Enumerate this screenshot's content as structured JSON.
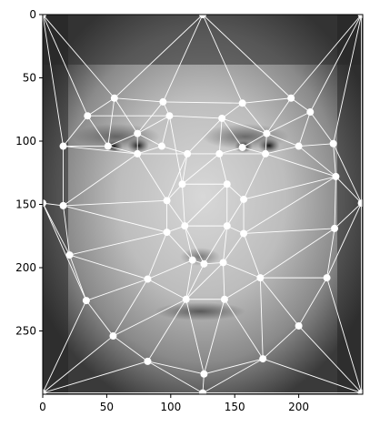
{
  "chart_data": {
    "type": "scatter",
    "title": "",
    "xlabel": "",
    "ylabel": "",
    "xlim": [
      0,
      250
    ],
    "ylim": [
      300,
      0
    ],
    "xticks": [
      0,
      50,
      100,
      150,
      200
    ],
    "yticks": [
      0,
      50,
      100,
      150,
      200,
      250
    ],
    "grid": false,
    "background_image": "grayscale-average-face",
    "colors": {
      "edges": "#ffffff",
      "points": "#ffffff",
      "frame": "#000000"
    },
    "points": [
      [
        0,
        0
      ],
      [
        125,
        0
      ],
      [
        249,
        0
      ],
      [
        0,
        149
      ],
      [
        249,
        149
      ],
      [
        0,
        299
      ],
      [
        125,
        299
      ],
      [
        249,
        299
      ],
      [
        56,
        66
      ],
      [
        94,
        69
      ],
      [
        35,
        80
      ],
      [
        99,
        80
      ],
      [
        74,
        94
      ],
      [
        51,
        104
      ],
      [
        93,
        104
      ],
      [
        16,
        104
      ],
      [
        74,
        110
      ],
      [
        113,
        110
      ],
      [
        156,
        70
      ],
      [
        194,
        66
      ],
      [
        209,
        77
      ],
      [
        140,
        82
      ],
      [
        175,
        94
      ],
      [
        156,
        105
      ],
      [
        138,
        110
      ],
      [
        174,
        110
      ],
      [
        200,
        104
      ],
      [
        227,
        102
      ],
      [
        109,
        134
      ],
      [
        144,
        134
      ],
      [
        97,
        147
      ],
      [
        157,
        146
      ],
      [
        16,
        151
      ],
      [
        229,
        128
      ],
      [
        97,
        172
      ],
      [
        111,
        167
      ],
      [
        144,
        167
      ],
      [
        157,
        173
      ],
      [
        228,
        169
      ],
      [
        21,
        190
      ],
      [
        117,
        194
      ],
      [
        126,
        197
      ],
      [
        141,
        196
      ],
      [
        82,
        209
      ],
      [
        170,
        208
      ],
      [
        222,
        208
      ],
      [
        34,
        226
      ],
      [
        112,
        225
      ],
      [
        142,
        225
      ],
      [
        200,
        246
      ],
      [
        55,
        254
      ],
      [
        82,
        274
      ],
      [
        126,
        284
      ],
      [
        172,
        272
      ]
    ],
    "edges": [
      [
        0,
        1
      ],
      [
        1,
        2
      ],
      [
        2,
        4
      ],
      [
        4,
        7
      ],
      [
        7,
        6
      ],
      [
        6,
        5
      ],
      [
        5,
        3
      ],
      [
        3,
        0
      ],
      [
        0,
        10
      ],
      [
        0,
        15
      ],
      [
        0,
        8
      ],
      [
        1,
        8
      ],
      [
        1,
        9
      ],
      [
        1,
        18
      ],
      [
        1,
        19
      ],
      [
        2,
        19
      ],
      [
        2,
        20
      ],
      [
        2,
        27
      ],
      [
        8,
        9
      ],
      [
        8,
        10
      ],
      [
        8,
        12
      ],
      [
        8,
        13
      ],
      [
        9,
        11
      ],
      [
        9,
        12
      ],
      [
        9,
        18
      ],
      [
        10,
        13
      ],
      [
        10,
        15
      ],
      [
        11,
        12
      ],
      [
        11,
        14
      ],
      [
        11,
        21
      ],
      [
        11,
        28
      ],
      [
        12,
        13
      ],
      [
        12,
        14
      ],
      [
        12,
        16
      ],
      [
        13,
        15
      ],
      [
        13,
        16
      ],
      [
        14,
        16
      ],
      [
        14,
        17
      ],
      [
        15,
        16
      ],
      [
        15,
        32
      ],
      [
        16,
        17
      ],
      [
        16,
        30
      ],
      [
        16,
        32
      ],
      [
        17,
        28
      ],
      [
        17,
        21
      ],
      [
        17,
        24
      ],
      [
        18,
        19
      ],
      [
        18,
        21
      ],
      [
        18,
        22
      ],
      [
        19,
        20
      ],
      [
        19,
        22
      ],
      [
        20,
        22
      ],
      [
        20,
        26
      ],
      [
        20,
        27
      ],
      [
        21,
        22
      ],
      [
        21,
        23
      ],
      [
        21,
        24
      ],
      [
        22,
        23
      ],
      [
        22,
        25
      ],
      [
        22,
        26
      ],
      [
        23,
        24
      ],
      [
        23,
        25
      ],
      [
        24,
        25
      ],
      [
        24,
        29
      ],
      [
        24,
        28
      ],
      [
        25,
        26
      ],
      [
        25,
        31
      ],
      [
        25,
        33
      ],
      [
        26,
        27
      ],
      [
        26,
        33
      ],
      [
        27,
        33
      ],
      [
        27,
        4
      ],
      [
        28,
        29
      ],
      [
        28,
        30
      ],
      [
        28,
        35
      ],
      [
        29,
        31
      ],
      [
        29,
        36
      ],
      [
        29,
        35
      ],
      [
        30,
        32
      ],
      [
        30,
        34
      ],
      [
        30,
        35
      ],
      [
        31,
        33
      ],
      [
        31,
        36
      ],
      [
        31,
        37
      ],
      [
        32,
        3
      ],
      [
        32,
        39
      ],
      [
        32,
        34
      ],
      [
        33,
        4
      ],
      [
        33,
        37
      ],
      [
        33,
        38
      ],
      [
        34,
        35
      ],
      [
        34,
        39
      ],
      [
        34,
        40
      ],
      [
        34,
        43
      ],
      [
        35,
        36
      ],
      [
        35,
        40
      ],
      [
        35,
        41
      ],
      [
        36,
        37
      ],
      [
        36,
        42
      ],
      [
        36,
        41
      ],
      [
        37,
        38
      ],
      [
        37,
        42
      ],
      [
        37,
        44
      ],
      [
        38,
        4
      ],
      [
        38,
        44
      ],
      [
        38,
        45
      ],
      [
        39,
        3
      ],
      [
        39,
        43
      ],
      [
        39,
        46
      ],
      [
        40,
        41
      ],
      [
        40,
        43
      ],
      [
        40,
        47
      ],
      [
        41,
        42
      ],
      [
        41,
        47
      ],
      [
        42,
        44
      ],
      [
        42,
        48
      ],
      [
        43,
        46
      ],
      [
        43,
        47
      ],
      [
        43,
        50
      ],
      [
        44,
        45
      ],
      [
        44,
        48
      ],
      [
        44,
        53
      ],
      [
        45,
        4
      ],
      [
        45,
        49
      ],
      [
        45,
        7
      ],
      [
        46,
        3
      ],
      [
        46,
        50
      ],
      [
        46,
        5
      ],
      [
        47,
        48
      ],
      [
        47,
        50
      ],
      [
        47,
        51
      ],
      [
        47,
        52
      ],
      [
        48,
        53
      ],
      [
        48,
        52
      ],
      [
        49,
        53
      ],
      [
        49,
        7
      ],
      [
        50,
        51
      ],
      [
        50,
        5
      ],
      [
        51,
        52
      ],
      [
        51,
        5
      ],
      [
        52,
        53
      ],
      [
        52,
        6
      ],
      [
        51,
        6
      ],
      [
        53,
        6
      ],
      [
        53,
        7
      ],
      [
        44,
        49
      ],
      [
        42,
        47
      ],
      [
        10,
        11
      ],
      [
        30,
        17
      ]
    ]
  }
}
